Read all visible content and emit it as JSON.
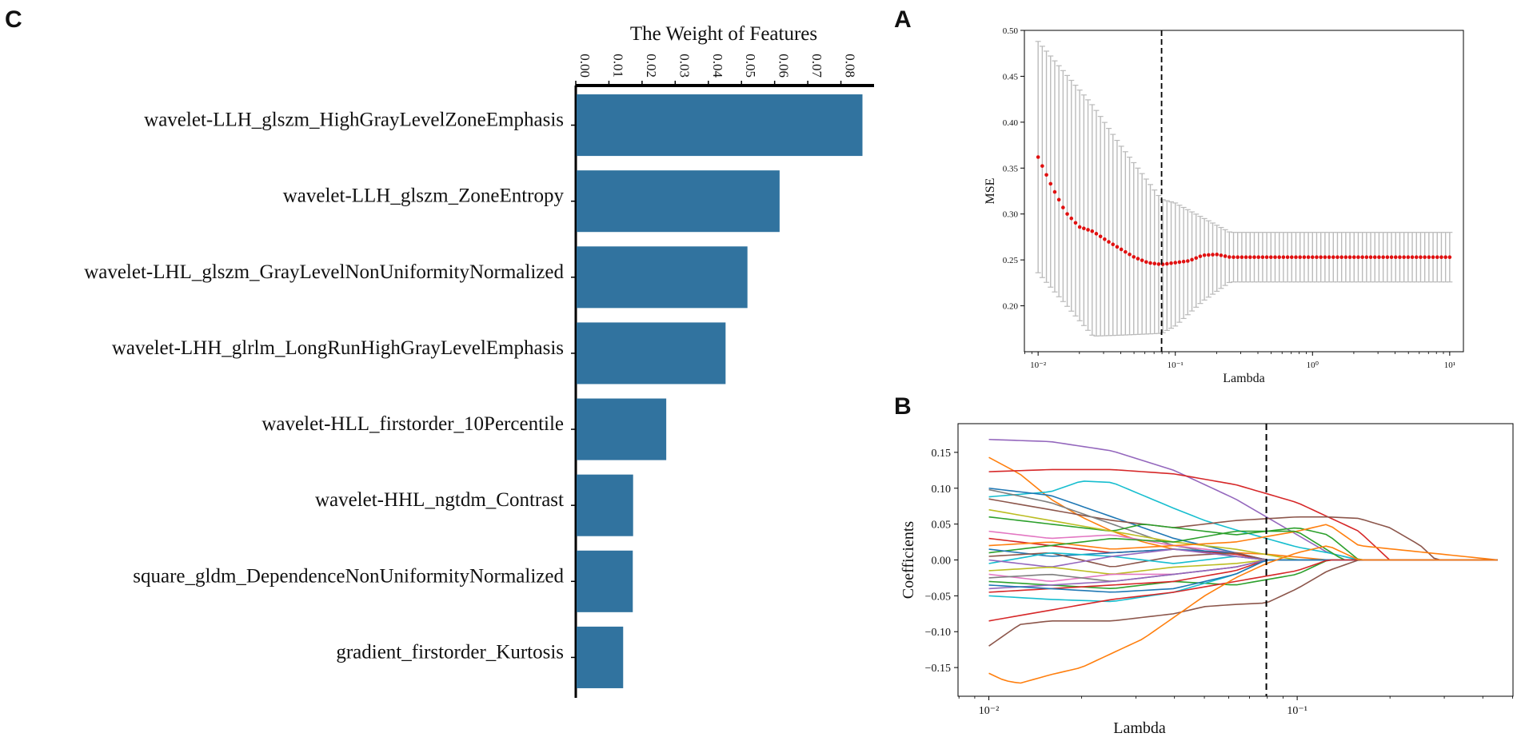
{
  "panels": {
    "c": "C",
    "a": "A",
    "b": "B"
  },
  "chart_data": [
    {
      "panel": "C",
      "type": "bar",
      "orientation": "horizontal",
      "title": "The Weight of Features",
      "xlim": [
        0,
        0.09
      ],
      "x_ticks": [
        "0.00",
        "0.01",
        "0.02",
        "0.03",
        "0.04",
        "0.05",
        "0.06",
        "0.07",
        "0.08"
      ],
      "x_tick_values": [
        0,
        0.01,
        0.02,
        0.03,
        0.04,
        0.05,
        0.06,
        0.07,
        0.08
      ],
      "color": "#31739f",
      "categories": [
        "wavelet-LLH_glszm_HighGrayLevelZoneEmphasis",
        "wavelet-LLH_glszm_ZoneEntropy",
        "wavelet-LHL_glszm_GrayLevelNonUniformityNormalized",
        "wavelet-LHH_glrlm_LongRunHighGrayLevelEmphasis",
        "wavelet-HLL_firstorder_10Percentile",
        "wavelet-HHL_ngtdm_Contrast",
        "square_gldm_DependenceNonUniformityNormalized",
        "gradient_firstorder_Kurtosis"
      ],
      "values": [
        0.0865,
        0.0615,
        0.0518,
        0.0452,
        0.0273,
        0.0173,
        0.0172,
        0.0143
      ]
    },
    {
      "panel": "A",
      "type": "scatter",
      "xlabel": "Lambda",
      "ylabel": "MSE",
      "x_scale": "log",
      "xlim_log10": [
        -2.1,
        1.1
      ],
      "ylim": [
        0.15,
        0.5
      ],
      "y_ticks": [
        "0.20",
        "0.25",
        "0.30",
        "0.35",
        "0.40",
        "0.45",
        "0.50"
      ],
      "y_tick_values": [
        0.2,
        0.25,
        0.3,
        0.35,
        0.4,
        0.45,
        0.5
      ],
      "x_ticks": [
        "10⁻²",
        "10⁻¹",
        "10⁰",
        "10¹"
      ],
      "x_tick_log10": [
        -2,
        -1,
        0,
        1
      ],
      "point_color": "#e01010",
      "errorbar_color": "#bbbbbb",
      "optimal_lambda_log10": -1.1,
      "mse_knots_log10": [
        -2.0,
        -1.9,
        -1.8,
        -1.7,
        -1.6,
        -1.5,
        -1.4,
        -1.3,
        -1.2,
        -1.1,
        -1.0,
        -0.9,
        -0.8,
        -0.7,
        -0.6,
        1.0
      ],
      "mse_knots": [
        0.362,
        0.33,
        0.302,
        0.286,
        0.281,
        0.271,
        0.262,
        0.253,
        0.247,
        0.245,
        0.247,
        0.249,
        0.255,
        0.256,
        0.253,
        0.253
      ],
      "error_knots_log10": [
        -2.0,
        -1.6,
        -1.4,
        -1.1,
        -1.0,
        -0.8,
        -0.6,
        1.0
      ],
      "lower_knots": [
        0.236,
        0.167,
        0.168,
        0.17,
        0.178,
        0.205,
        0.226,
        0.226
      ],
      "upper_knots": [
        0.488,
        0.418,
        0.375,
        0.316,
        0.312,
        0.296,
        0.28,
        0.28
      ]
    },
    {
      "panel": "B",
      "type": "line",
      "xlabel": "Lambda",
      "ylabel": "Coefficients",
      "x_scale": "log",
      "xlim_log10": [
        -2.1,
        -0.3
      ],
      "ylim": [
        -0.19,
        0.19
      ],
      "y_ticks": [
        "−0.15",
        "−0.10",
        "−0.05",
        "0.00",
        "0.05",
        "0.10",
        "0.15"
      ],
      "y_tick_values": [
        -0.15,
        -0.1,
        -0.05,
        0.0,
        0.05,
        0.1,
        0.15
      ],
      "x_ticks": [
        "10⁻²",
        "10⁻¹"
      ],
      "x_tick_log10": [
        -2,
        -1
      ],
      "optimal_lambda_log10": -1.1,
      "x_end_log10": -0.35,
      "series": [
        {
          "name": "purple",
          "color": "#9467bd",
          "x": [
            -2.0,
            -1.8,
            -1.6,
            -1.4,
            -1.2,
            -1.0,
            -0.9,
            -0.8,
            -0.35
          ],
          "y": [
            0.168,
            0.165,
            0.152,
            0.125,
            0.085,
            0.035,
            0.01,
            0.0,
            0.0
          ]
        },
        {
          "name": "orange-high",
          "color": "#ff7f0e",
          "x": [
            -2.0,
            -1.9,
            -1.8,
            -1.7,
            -1.6,
            -1.5,
            -1.4,
            -1.3,
            -1.2,
            -1.1,
            -1.0,
            -0.9,
            -0.35
          ],
          "y": [
            0.143,
            0.12,
            0.085,
            0.06,
            0.04,
            0.025,
            0.015,
            0.012,
            0.01,
            0.008,
            0.004,
            0.0,
            0.0
          ]
        },
        {
          "name": "red-top",
          "color": "#d62728",
          "x": [
            -2.0,
            -1.8,
            -1.6,
            -1.4,
            -1.2,
            -1.0,
            -0.8,
            -0.7,
            -0.35
          ],
          "y": [
            0.123,
            0.126,
            0.126,
            0.12,
            0.105,
            0.08,
            0.04,
            0.0,
            0.0
          ]
        },
        {
          "name": "cyan-top",
          "color": "#17becf",
          "x": [
            -2.0,
            -1.8,
            -1.7,
            -1.6,
            -1.5,
            -1.4,
            -1.3,
            -1.2,
            -1.1,
            -1.0,
            -0.9,
            -0.8,
            -0.35
          ],
          "y": [
            0.088,
            0.095,
            0.11,
            0.108,
            0.09,
            0.072,
            0.055,
            0.042,
            0.03,
            0.018,
            0.01,
            0.0,
            0.0
          ]
        },
        {
          "name": "blue-1",
          "color": "#1f77b4",
          "x": [
            -2.0,
            -1.8,
            -1.6,
            -1.4,
            -1.2,
            -1.1,
            -0.35
          ],
          "y": [
            0.1,
            0.09,
            0.06,
            0.03,
            0.01,
            0.0,
            0.0
          ]
        },
        {
          "name": "brown-top",
          "color": "#8c564b",
          "x": [
            -2.0,
            -1.8,
            -1.6,
            -1.4,
            -1.2,
            -1.0,
            -0.9,
            -0.8,
            -0.7,
            -0.6,
            -0.55,
            -0.35
          ],
          "y": [
            0.085,
            0.07,
            0.055,
            0.045,
            0.055,
            0.06,
            0.06,
            0.058,
            0.045,
            0.02,
            0.0,
            0.0
          ]
        },
        {
          "name": "grey-1",
          "color": "#7f7f7f",
          "x": [
            -2.0,
            -1.8,
            -1.6,
            -1.4,
            -1.2,
            -1.1,
            -0.35
          ],
          "y": [
            0.098,
            0.08,
            0.05,
            0.02,
            0.005,
            0.0,
            0.0
          ]
        },
        {
          "name": "green-1",
          "color": "#2ca02c",
          "x": [
            -2.0,
            -1.8,
            -1.6,
            -1.5,
            -1.4,
            -1.2,
            -1.0,
            -0.9,
            -0.8,
            -0.35
          ],
          "y": [
            0.06,
            0.05,
            0.04,
            0.05,
            0.045,
            0.035,
            0.045,
            0.035,
            0.0,
            0.0
          ]
        },
        {
          "name": "olive-1",
          "color": "#bcbd22",
          "x": [
            -2.0,
            -1.8,
            -1.6,
            -1.4,
            -1.2,
            -1.0,
            -0.35
          ],
          "y": [
            0.07,
            0.055,
            0.04,
            0.025,
            0.015,
            0.0,
            0.0
          ]
        },
        {
          "name": "pink-1",
          "color": "#e377c2",
          "x": [
            -2.0,
            -1.8,
            -1.6,
            -1.4,
            -1.2,
            -1.1,
            -0.35
          ],
          "y": [
            0.04,
            0.03,
            0.035,
            0.02,
            0.01,
            0.0,
            0.0
          ]
        },
        {
          "name": "red-mid",
          "color": "#d62728",
          "x": [
            -2.0,
            -1.8,
            -1.6,
            -1.4,
            -1.2,
            -1.1,
            -0.35
          ],
          "y": [
            0.03,
            0.02,
            0.01,
            0.015,
            0.008,
            0.0,
            0.0
          ]
        },
        {
          "name": "orange-mid",
          "color": "#ff7f0e",
          "x": [
            -2.0,
            -1.8,
            -1.6,
            -1.4,
            -1.2,
            -1.0,
            -0.9,
            -0.8,
            -0.35
          ],
          "y": [
            0.02,
            0.025,
            0.015,
            0.02,
            0.025,
            0.04,
            0.05,
            0.02,
            0.0
          ]
        },
        {
          "name": "green-2",
          "color": "#2ca02c",
          "x": [
            -2.0,
            -1.8,
            -1.6,
            -1.4,
            -1.2,
            -1.0,
            -0.85,
            -0.35
          ],
          "y": [
            0.01,
            0.02,
            0.03,
            0.025,
            0.04,
            0.04,
            0.0,
            0.0
          ]
        },
        {
          "name": "blue-2",
          "color": "#1f77b4",
          "x": [
            -2.0,
            -1.8,
            -1.6,
            -1.4,
            -1.2,
            -1.1,
            -0.35
          ],
          "y": [
            0.015,
            0.005,
            0.01,
            0.015,
            0.01,
            0.0,
            0.0
          ]
        },
        {
          "name": "brown-mid",
          "color": "#8c564b",
          "x": [
            -2.0,
            -1.8,
            -1.6,
            -1.4,
            -1.2,
            -1.1,
            -0.35
          ],
          "y": [
            0.005,
            0.01,
            -0.01,
            0.005,
            0.01,
            0.0,
            0.0
          ]
        },
        {
          "name": "cyan-mid",
          "color": "#17becf",
          "x": [
            -2.0,
            -1.8,
            -1.6,
            -1.4,
            -1.2,
            -1.1,
            -0.35
          ],
          "y": [
            -0.005,
            0.01,
            0.005,
            -0.005,
            0.005,
            0.0,
            0.0
          ]
        },
        {
          "name": "purple-mid",
          "color": "#9467bd",
          "x": [
            -2.0,
            -1.8,
            -1.6,
            -1.4,
            -1.2,
            -1.1,
            -0.35
          ],
          "y": [
            0.0,
            -0.01,
            0.005,
            0.015,
            0.005,
            0.0,
            0.0
          ]
        },
        {
          "name": "olive-low",
          "color": "#bcbd22",
          "x": [
            -2.0,
            -1.8,
            -1.6,
            -1.4,
            -1.2,
            -1.1,
            -0.35
          ],
          "y": [
            -0.015,
            -0.01,
            -0.02,
            -0.01,
            -0.005,
            0.0,
            0.0
          ]
        },
        {
          "name": "pink-low",
          "color": "#e377c2",
          "x": [
            -2.0,
            -1.8,
            -1.6,
            -1.4,
            -1.2,
            -1.1,
            -0.35
          ],
          "y": [
            -0.02,
            -0.03,
            -0.02,
            -0.02,
            -0.01,
            0.0,
            0.0
          ]
        },
        {
          "name": "grey-low",
          "color": "#7f7f7f",
          "x": [
            -2.0,
            -1.8,
            -1.6,
            -1.4,
            -1.2,
            -1.1,
            -0.35
          ],
          "y": [
            -0.025,
            -0.02,
            -0.03,
            -0.02,
            -0.01,
            0.0,
            0.0
          ]
        },
        {
          "name": "green-low",
          "color": "#2ca02c",
          "x": [
            -2.0,
            -1.8,
            -1.6,
            -1.4,
            -1.2,
            -1.0,
            -0.9,
            -0.35
          ],
          "y": [
            -0.03,
            -0.035,
            -0.04,
            -0.03,
            -0.035,
            -0.02,
            0.0,
            0.0
          ]
        },
        {
          "name": "red-low1",
          "color": "#d62728",
          "x": [
            -2.0,
            -1.8,
            -1.6,
            -1.4,
            -1.2,
            -1.1,
            -0.35
          ],
          "y": [
            -0.045,
            -0.04,
            -0.035,
            -0.03,
            -0.015,
            0.0,
            0.0
          ]
        },
        {
          "name": "purple-low",
          "color": "#9467bd",
          "x": [
            -2.0,
            -1.8,
            -1.6,
            -1.4,
            -1.2,
            -1.1,
            -0.35
          ],
          "y": [
            -0.04,
            -0.035,
            -0.03,
            -0.02,
            -0.01,
            0.0,
            0.0
          ]
        },
        {
          "name": "cyan-low",
          "color": "#17becf",
          "x": [
            -2.0,
            -1.8,
            -1.6,
            -1.4,
            -1.2,
            -1.1,
            -0.35
          ],
          "y": [
            -0.05,
            -0.055,
            -0.058,
            -0.045,
            -0.02,
            0.0,
            0.0
          ]
        },
        {
          "name": "blue-low",
          "color": "#1f77b4",
          "x": [
            -2.0,
            -1.8,
            -1.6,
            -1.4,
            -1.2,
            -1.1,
            -0.35
          ],
          "y": [
            -0.035,
            -0.04,
            -0.045,
            -0.04,
            -0.02,
            0.0,
            0.0
          ]
        },
        {
          "name": "red-low2",
          "color": "#d62728",
          "x": [
            -2.0,
            -1.8,
            -1.6,
            -1.4,
            -1.2,
            -1.0,
            -0.9,
            -0.35
          ],
          "y": [
            -0.085,
            -0.07,
            -0.055,
            -0.045,
            -0.03,
            -0.015,
            0.0,
            0.0
          ]
        },
        {
          "name": "brown-low",
          "color": "#8c564b",
          "x": [
            -2.0,
            -1.9,
            -1.8,
            -1.6,
            -1.4,
            -1.3,
            -1.2,
            -1.1,
            -1.0,
            -0.9,
            -0.8,
            -0.35
          ],
          "y": [
            -0.12,
            -0.09,
            -0.085,
            -0.085,
            -0.075,
            -0.065,
            -0.062,
            -0.06,
            -0.04,
            -0.015,
            0.0,
            0.0
          ]
        },
        {
          "name": "orange-low",
          "color": "#ff7f0e",
          "x": [
            -2.0,
            -1.95,
            -1.9,
            -1.8,
            -1.7,
            -1.6,
            -1.5,
            -1.4,
            -1.3,
            -1.2,
            -1.1,
            -1.0,
            -0.9,
            -0.8,
            -0.35
          ],
          "y": [
            -0.158,
            -0.168,
            -0.172,
            -0.16,
            -0.15,
            -0.13,
            -0.11,
            -0.08,
            -0.05,
            -0.025,
            -0.005,
            0.01,
            0.02,
            0.0,
            0.0
          ]
        }
      ]
    }
  ]
}
